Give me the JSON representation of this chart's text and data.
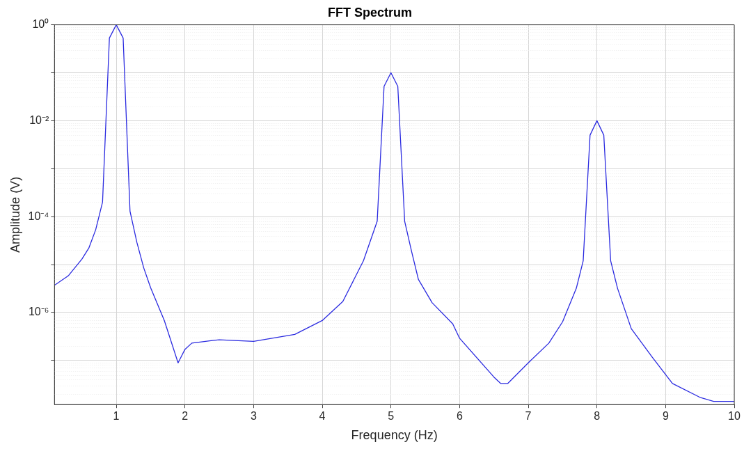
{
  "chart_data": {
    "type": "line",
    "title": "FFT Spectrum",
    "xlabel": "Frequency (Hz)",
    "ylabel": "Amplitude (V)",
    "series": [
      {
        "color": "#2a2ae0",
        "x": [
          0.1,
          0.3,
          0.5,
          0.6,
          0.7,
          0.8,
          0.9,
          1.0,
          1.1,
          1.2,
          1.3,
          1.4,
          1.5,
          1.7,
          1.9,
          2.0,
          2.1,
          2.4,
          2.5,
          3.0,
          3.45,
          3.6,
          4.0,
          4.3,
          4.6,
          4.8,
          4.9,
          5.0,
          5.1,
          5.2,
          5.3,
          5.4,
          5.6,
          5.9,
          6.0,
          6.5,
          6.6,
          6.7,
          7.0,
          7.3,
          7.5,
          7.7,
          7.8,
          7.9,
          8.0,
          8.1,
          8.2,
          8.3,
          8.5,
          8.8,
          9.1,
          9.5,
          9.7,
          10.0
        ],
        "values": [
          3.7e-06,
          5.8e-06,
          1.3e-05,
          2.2e-05,
          5.3e-05,
          0.0002,
          0.53,
          1.0,
          0.53,
          0.00013,
          2.9e-05,
          8.5e-06,
          3.3e-06,
          6.8e-07,
          8.9e-08,
          1.7e-07,
          2.3e-07,
          2.6e-07,
          2.7e-07,
          2.5e-07,
          3.2e-07,
          3.5e-07,
          6.8e-07,
          1.7e-06,
          1.2e-05,
          8e-05,
          0.052,
          0.1,
          0.052,
          8e-05,
          1.9e-05,
          4.9e-06,
          1.6e-06,
          5.8e-07,
          2.9e-07,
          4.5e-08,
          3.3e-08,
          3.3e-08,
          8.9e-08,
          2.3e-07,
          6.4e-07,
          3.2e-06,
          1.2e-05,
          0.005,
          0.01,
          0.005,
          1.2e-05,
          3.2e-06,
          4.6e-07,
          1.2e-07,
          3.3e-08,
          1.7e-08,
          1.4e-08,
          1.4e-08
        ]
      }
    ],
    "xlim": [
      0.1,
      10
    ],
    "xticks": [
      1,
      2,
      3,
      4,
      5,
      6,
      7,
      8,
      9,
      10
    ],
    "ylim": [
      1.2e-08,
      1
    ],
    "yticks": [
      {
        "value": 1,
        "label": "10⁰"
      },
      {
        "value": 0.1,
        "label": null
      },
      {
        "value": 0.01,
        "label": "10⁻²"
      },
      {
        "value": 0.001,
        "label": null
      },
      {
        "value": 0.0001,
        "label": "10⁻⁴"
      },
      {
        "value": 1e-05,
        "label": null
      },
      {
        "value": 1e-06,
        "label": "10⁻⁶"
      },
      {
        "value": 1e-07,
        "label": null
      }
    ],
    "log": "y",
    "grid": true,
    "legend": false,
    "marker": "none",
    "line_style": "solid"
  }
}
